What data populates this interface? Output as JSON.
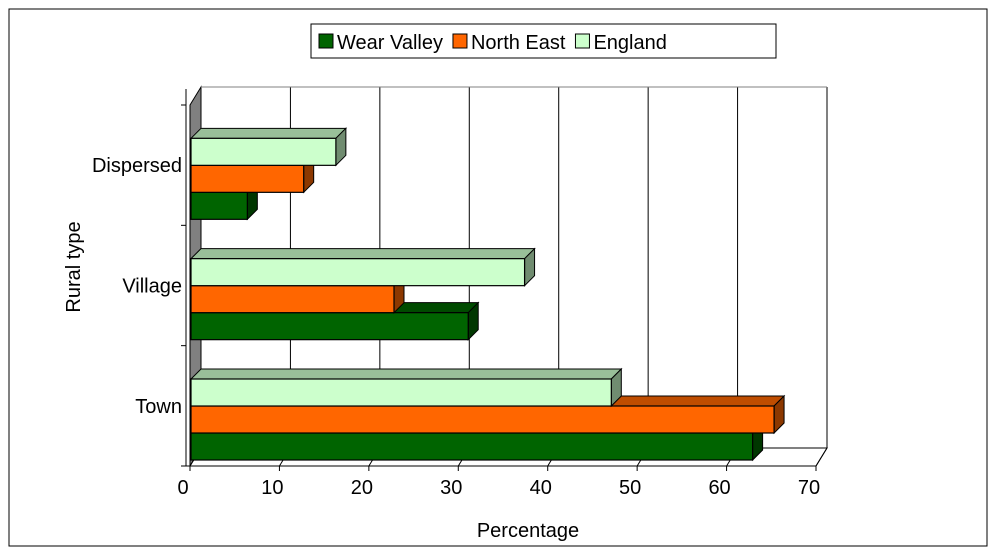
{
  "chart_data": {
    "type": "bar",
    "orientation": "horizontal",
    "three_d": true,
    "categories": [
      "Town",
      "Village",
      "Dispersed"
    ],
    "series": [
      {
        "name": "Wear Valley",
        "values": [
          62.8,
          31.0,
          6.3
        ],
        "color": "#006400"
      },
      {
        "name": "North East",
        "values": [
          65.2,
          22.7,
          12.6
        ],
        "color": "#ff6600"
      },
      {
        "name": "England",
        "values": [
          47.0,
          37.3,
          16.2
        ],
        "color": "#ccffcc"
      }
    ],
    "xlabel": "Percentage",
    "ylabel": "Rural type",
    "xlim": [
      0,
      70
    ],
    "xticks": [
      0,
      10,
      20,
      30,
      40,
      50,
      60,
      70
    ],
    "grid": true,
    "legend_position": "top"
  }
}
